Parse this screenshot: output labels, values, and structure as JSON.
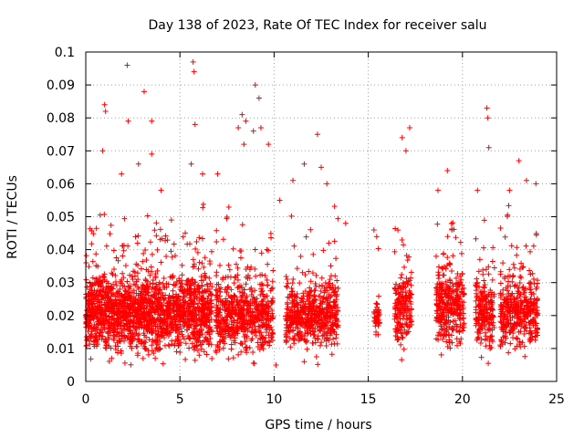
{
  "chart_data": {
    "type": "scatter",
    "title": "Day 138 of 2023, Rate Of TEC Index for receiver salu",
    "xlabel": "GPS time / hours",
    "ylabel": "ROTI / TECUs",
    "xlim": [
      0,
      25
    ],
    "ylim": [
      0,
      0.1
    ],
    "x_ticks": [
      "0",
      "5",
      "10",
      "15",
      "20",
      "25"
    ],
    "y_ticks": [
      "0",
      "0.01",
      "0.02",
      "0.03",
      "0.04",
      "0.05",
      "0.06",
      "0.07",
      "0.08",
      "0.09",
      "0.1"
    ],
    "grid": true,
    "marker": "+",
    "color": "#ff0000",
    "data_segments": [
      {
        "start": 0.0,
        "end": 6.7,
        "median": 0.021,
        "spread": 0.008,
        "density": 260
      },
      {
        "start": 6.9,
        "end": 9.95,
        "median": 0.02,
        "spread": 0.0075,
        "density": 200
      },
      {
        "start": 10.6,
        "end": 13.4,
        "median": 0.021,
        "spread": 0.0075,
        "density": 200
      },
      {
        "start": 15.3,
        "end": 15.6,
        "median": 0.019,
        "spread": 0.004,
        "density": 150
      },
      {
        "start": 16.4,
        "end": 17.3,
        "median": 0.022,
        "spread": 0.007,
        "density": 200
      },
      {
        "start": 18.6,
        "end": 20.1,
        "median": 0.023,
        "spread": 0.008,
        "density": 220
      },
      {
        "start": 20.7,
        "end": 21.7,
        "median": 0.021,
        "spread": 0.008,
        "density": 200
      },
      {
        "start": 22.0,
        "end": 24.0,
        "median": 0.021,
        "spread": 0.007,
        "density": 200
      }
    ],
    "outliers": [
      [
        1.0,
        0.084
      ],
      [
        1.05,
        0.082
      ],
      [
        0.9,
        0.07
      ],
      [
        2.2,
        0.096
      ],
      [
        2.25,
        0.079
      ],
      [
        3.1,
        0.088
      ],
      [
        3.5,
        0.079
      ],
      [
        3.5,
        0.069
      ],
      [
        2.8,
        0.066
      ],
      [
        5.7,
        0.097
      ],
      [
        5.75,
        0.094
      ],
      [
        5.8,
        0.078
      ],
      [
        5.6,
        0.066
      ],
      [
        7.0,
        0.063
      ],
      [
        8.3,
        0.081
      ],
      [
        8.5,
        0.079
      ],
      [
        8.1,
        0.077
      ],
      [
        8.4,
        0.072
      ],
      [
        9.0,
        0.09
      ],
      [
        9.2,
        0.086
      ],
      [
        9.3,
        0.077
      ],
      [
        8.9,
        0.076
      ],
      [
        9.7,
        0.072
      ],
      [
        11.6,
        0.066
      ],
      [
        12.3,
        0.075
      ],
      [
        12.5,
        0.065
      ],
      [
        17.2,
        0.077
      ],
      [
        16.8,
        0.074
      ],
      [
        17.0,
        0.07
      ],
      [
        21.3,
        0.083
      ],
      [
        21.35,
        0.08
      ],
      [
        21.4,
        0.071
      ],
      [
        19.2,
        0.064
      ],
      [
        23.0,
        0.067
      ],
      [
        23.4,
        0.061
      ],
      [
        23.9,
        0.06
      ],
      [
        1.9,
        0.063
      ],
      [
        4.0,
        0.058
      ],
      [
        6.2,
        0.063
      ],
      [
        10.3,
        0.055
      ],
      [
        13.8,
        0.048
      ],
      [
        12.8,
        0.06
      ],
      [
        22.5,
        0.058
      ],
      [
        20.8,
        0.058
      ],
      [
        11.0,
        0.061
      ],
      [
        15.3,
        0.046
      ],
      [
        18.7,
        0.058
      ],
      [
        10.1,
        0.005
      ]
    ]
  }
}
